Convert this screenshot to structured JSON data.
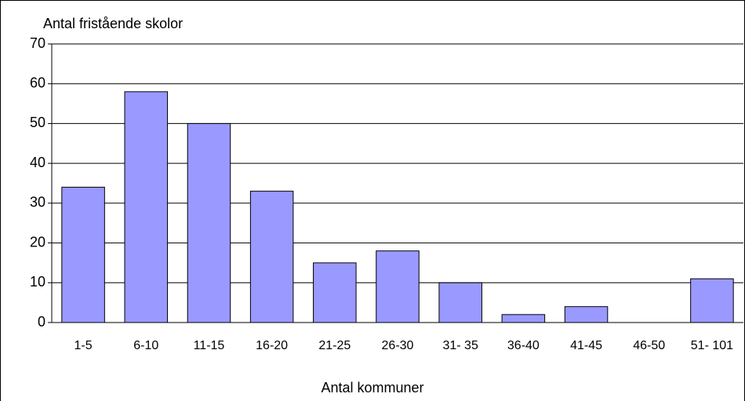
{
  "chart_data": {
    "type": "bar",
    "title": "Antal fristående skolor",
    "x_label": "Antal kommuner",
    "categories": [
      "1-5",
      "6-10",
      "11-15",
      "16-20",
      "21-25",
      "26-30",
      "31- 35",
      "36-40",
      "41-45",
      "46-50",
      "51- 101"
    ],
    "values": [
      34,
      58,
      50,
      33,
      15,
      18,
      10,
      2,
      4,
      0,
      11
    ],
    "color": "#9999ff",
    "ylim": [
      0,
      70
    ],
    "yticks": [
      0,
      10,
      20,
      30,
      40,
      50,
      60,
      70
    ],
    "grid": true
  }
}
